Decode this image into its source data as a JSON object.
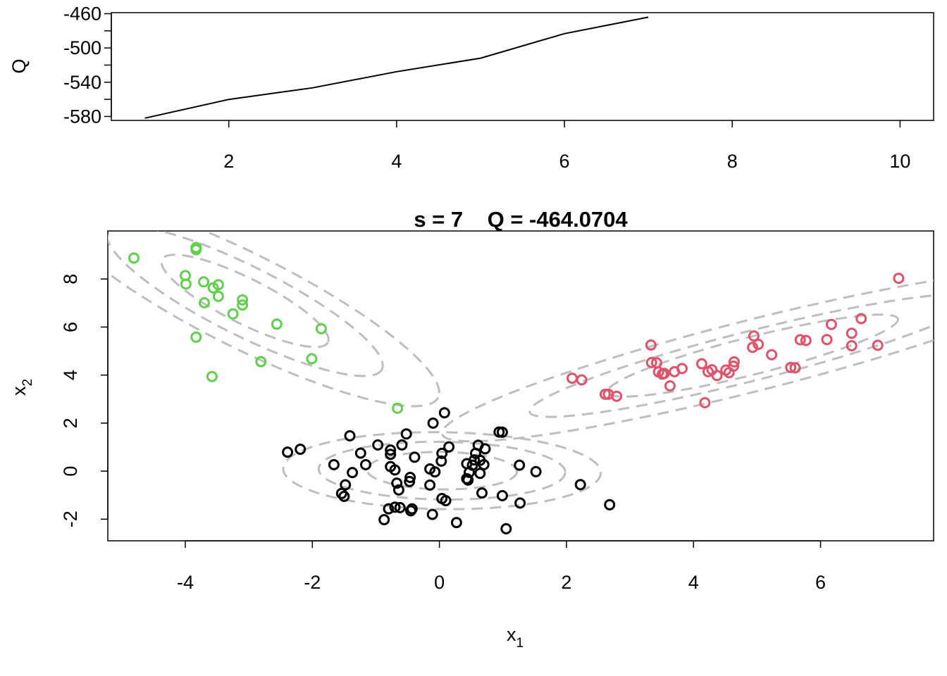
{
  "chart_data": [
    {
      "type": "line",
      "title": "",
      "xlabel": "",
      "ylabel": "Q",
      "xlim": [
        0.6,
        10.4
      ],
      "ylim": [
        -584.6,
        -458.8
      ],
      "xticks": [
        2,
        4,
        6,
        8,
        10
      ],
      "xtick_labels": [
        "2",
        "4",
        "6",
        "8",
        "10"
      ],
      "yticks": [
        -580,
        -540,
        -500,
        -460
      ],
      "ytick_labels": [
        "-580",
        "-540",
        "-500",
        "-460"
      ],
      "yminor_ticks": [
        -560,
        -520,
        -480
      ],
      "grid": false,
      "legend": "none",
      "color": "#000000",
      "x": [
        1,
        2,
        3,
        4,
        5,
        6,
        7
      ],
      "y": [
        -582.0,
        -560.1,
        -546.5,
        -527.7,
        -511.9,
        -483.3,
        -464.1
      ]
    },
    {
      "type": "scatter",
      "title": "s = 7    Q = -464.0704",
      "xlabel": "x",
      "xlabel_sub": "1",
      "ylabel": "x",
      "ylabel_sub": "2",
      "xlim": [
        -5.22,
        7.78
      ],
      "ylim": [
        -2.9,
        10.0
      ],
      "xticks": [
        -4,
        -2,
        0,
        2,
        4,
        6
      ],
      "xtick_labels": [
        "-4",
        "-2",
        "0",
        "2",
        "4",
        "6"
      ],
      "yticks": [
        -2,
        0,
        2,
        4,
        6,
        8
      ],
      "ytick_labels": [
        "-2",
        "0",
        "2",
        "4",
        "6",
        "8"
      ],
      "grid": false,
      "legend": "none",
      "contour_color": "#BEBEBE",
      "series": [
        {
          "color": "#000000",
          "points": [
            [
              -2.39,
              0.79
            ],
            [
              -2.19,
              0.91
            ],
            [
              -1.66,
              0.27
            ],
            [
              -1.54,
              -0.93
            ],
            [
              -1.5,
              -1.05
            ],
            [
              -1.48,
              -0.57
            ],
            [
              -1.41,
              1.47
            ],
            [
              -1.37,
              -0.06
            ],
            [
              -1.24,
              0.75
            ],
            [
              -1.16,
              0.27
            ],
            [
              -0.97,
              1.09
            ],
            [
              -0.87,
              -2.02
            ],
            [
              -0.8,
              -1.57
            ],
            [
              -0.77,
              0.7
            ],
            [
              -0.77,
              0.88
            ],
            [
              -0.77,
              0.19
            ],
            [
              -0.7,
              -1.5
            ],
            [
              -0.7,
              0.05
            ],
            [
              -0.67,
              -0.5
            ],
            [
              -0.64,
              -0.78
            ],
            [
              -0.62,
              -1.52
            ],
            [
              -0.59,
              1.09
            ],
            [
              -0.52,
              1.55
            ],
            [
              -0.47,
              -0.43
            ],
            [
              -0.46,
              -0.26
            ],
            [
              -0.45,
              -1.65
            ],
            [
              -0.43,
              -1.57
            ],
            [
              -0.39,
              0.58
            ],
            [
              -0.15,
              -0.58
            ],
            [
              -0.15,
              0.09
            ],
            [
              -0.11,
              -1.8
            ],
            [
              -0.1,
              2.0
            ],
            [
              -0.07,
              -0.03
            ],
            [
              0.03,
              0.42
            ],
            [
              0.04,
              0.74
            ],
            [
              0.04,
              -1.14
            ],
            [
              0.08,
              2.43
            ],
            [
              0.1,
              -1.23
            ],
            [
              0.15,
              1.01
            ],
            [
              0.27,
              -2.14
            ],
            [
              0.43,
              -0.31
            ],
            [
              0.43,
              0.31
            ],
            [
              0.45,
              -0.37
            ],
            [
              0.47,
              -0.05
            ],
            [
              0.52,
              0.25
            ],
            [
              0.55,
              0.47
            ],
            [
              0.57,
              0.74
            ],
            [
              0.61,
              1.08
            ],
            [
              0.64,
              0.45
            ],
            [
              0.64,
              -0.09
            ],
            [
              0.67,
              -0.91
            ],
            [
              0.7,
              0.27
            ],
            [
              0.72,
              0.93
            ],
            [
              0.94,
              1.63
            ],
            [
              0.99,
              1.62
            ],
            [
              0.99,
              -1.02
            ],
            [
              1.05,
              -2.4
            ],
            [
              1.26,
              0.25
            ],
            [
              1.27,
              -1.33
            ],
            [
              1.52,
              -0.02
            ],
            [
              2.22,
              -0.56
            ],
            [
              2.68,
              -1.4
            ]
          ]
        },
        {
          "color": "#DF536B",
          "points": [
            [
              2.09,
              3.87
            ],
            [
              2.24,
              3.8
            ],
            [
              2.61,
              3.2
            ],
            [
              2.66,
              3.2
            ],
            [
              2.79,
              3.12
            ],
            [
              3.33,
              5.25
            ],
            [
              3.34,
              4.52
            ],
            [
              3.42,
              4.51
            ],
            [
              3.45,
              4.13
            ],
            [
              3.51,
              4.04
            ],
            [
              3.54,
              4.07
            ],
            [
              3.63,
              3.55
            ],
            [
              3.7,
              4.14
            ],
            [
              3.82,
              4.27
            ],
            [
              4.13,
              4.47
            ],
            [
              4.18,
              2.85
            ],
            [
              4.23,
              4.14
            ],
            [
              4.29,
              4.22
            ],
            [
              4.37,
              3.98
            ],
            [
              4.51,
              4.21
            ],
            [
              4.56,
              4.1
            ],
            [
              4.63,
              4.37
            ],
            [
              4.64,
              4.55
            ],
            [
              4.93,
              5.15
            ],
            [
              4.95,
              5.63
            ],
            [
              5.02,
              5.28
            ],
            [
              5.23,
              4.85
            ],
            [
              5.53,
              4.32
            ],
            [
              5.6,
              4.3
            ],
            [
              5.68,
              5.47
            ],
            [
              5.77,
              5.44
            ],
            [
              6.1,
              5.48
            ],
            [
              6.17,
              6.11
            ],
            [
              6.49,
              5.74
            ],
            [
              6.49,
              5.22
            ],
            [
              6.64,
              6.35
            ],
            [
              6.9,
              5.24
            ],
            [
              7.23,
              8.03
            ]
          ]
        },
        {
          "color": "#61D04F",
          "points": [
            [
              -4.81,
              8.87
            ],
            [
              -4.0,
              8.14
            ],
            [
              -3.99,
              7.79
            ],
            [
              -3.83,
              9.31
            ],
            [
              -3.83,
              9.22
            ],
            [
              -3.83,
              5.58
            ],
            [
              -3.7,
              7.01
            ],
            [
              -3.71,
              7.88
            ],
            [
              -3.56,
              7.63
            ],
            [
              -3.48,
              7.76
            ],
            [
              -3.48,
              7.28
            ],
            [
              -3.58,
              3.94
            ],
            [
              -3.25,
              6.55
            ],
            [
              -3.1,
              7.13
            ],
            [
              -3.1,
              6.92
            ],
            [
              -2.81,
              4.56
            ],
            [
              -2.56,
              6.12
            ],
            [
              -2.01,
              4.68
            ],
            [
              -1.86,
              5.93
            ],
            [
              -0.66,
              2.62
            ]
          ]
        }
      ],
      "contours": [
        {
          "center": [
            0.04,
            0.02
          ],
          "radii": [
            1.18,
            0.78,
            1.94,
            1.2,
            2.5,
            1.6
          ],
          "angle": -0.8
        },
        {
          "center": [
            4.93,
            4.81
          ],
          "radii": [
            2.36,
            0.78,
            3.62,
            1.03,
            5.04,
            1.48
          ],
          "angle": 14.2
        },
        {
          "center": [
            -3.06,
            7.09
          ],
          "radii": [
            1.46,
            0.94,
            2.41,
            1.44,
            3.4,
            1.95
          ],
          "angle": -26.6
        }
      ]
    }
  ]
}
